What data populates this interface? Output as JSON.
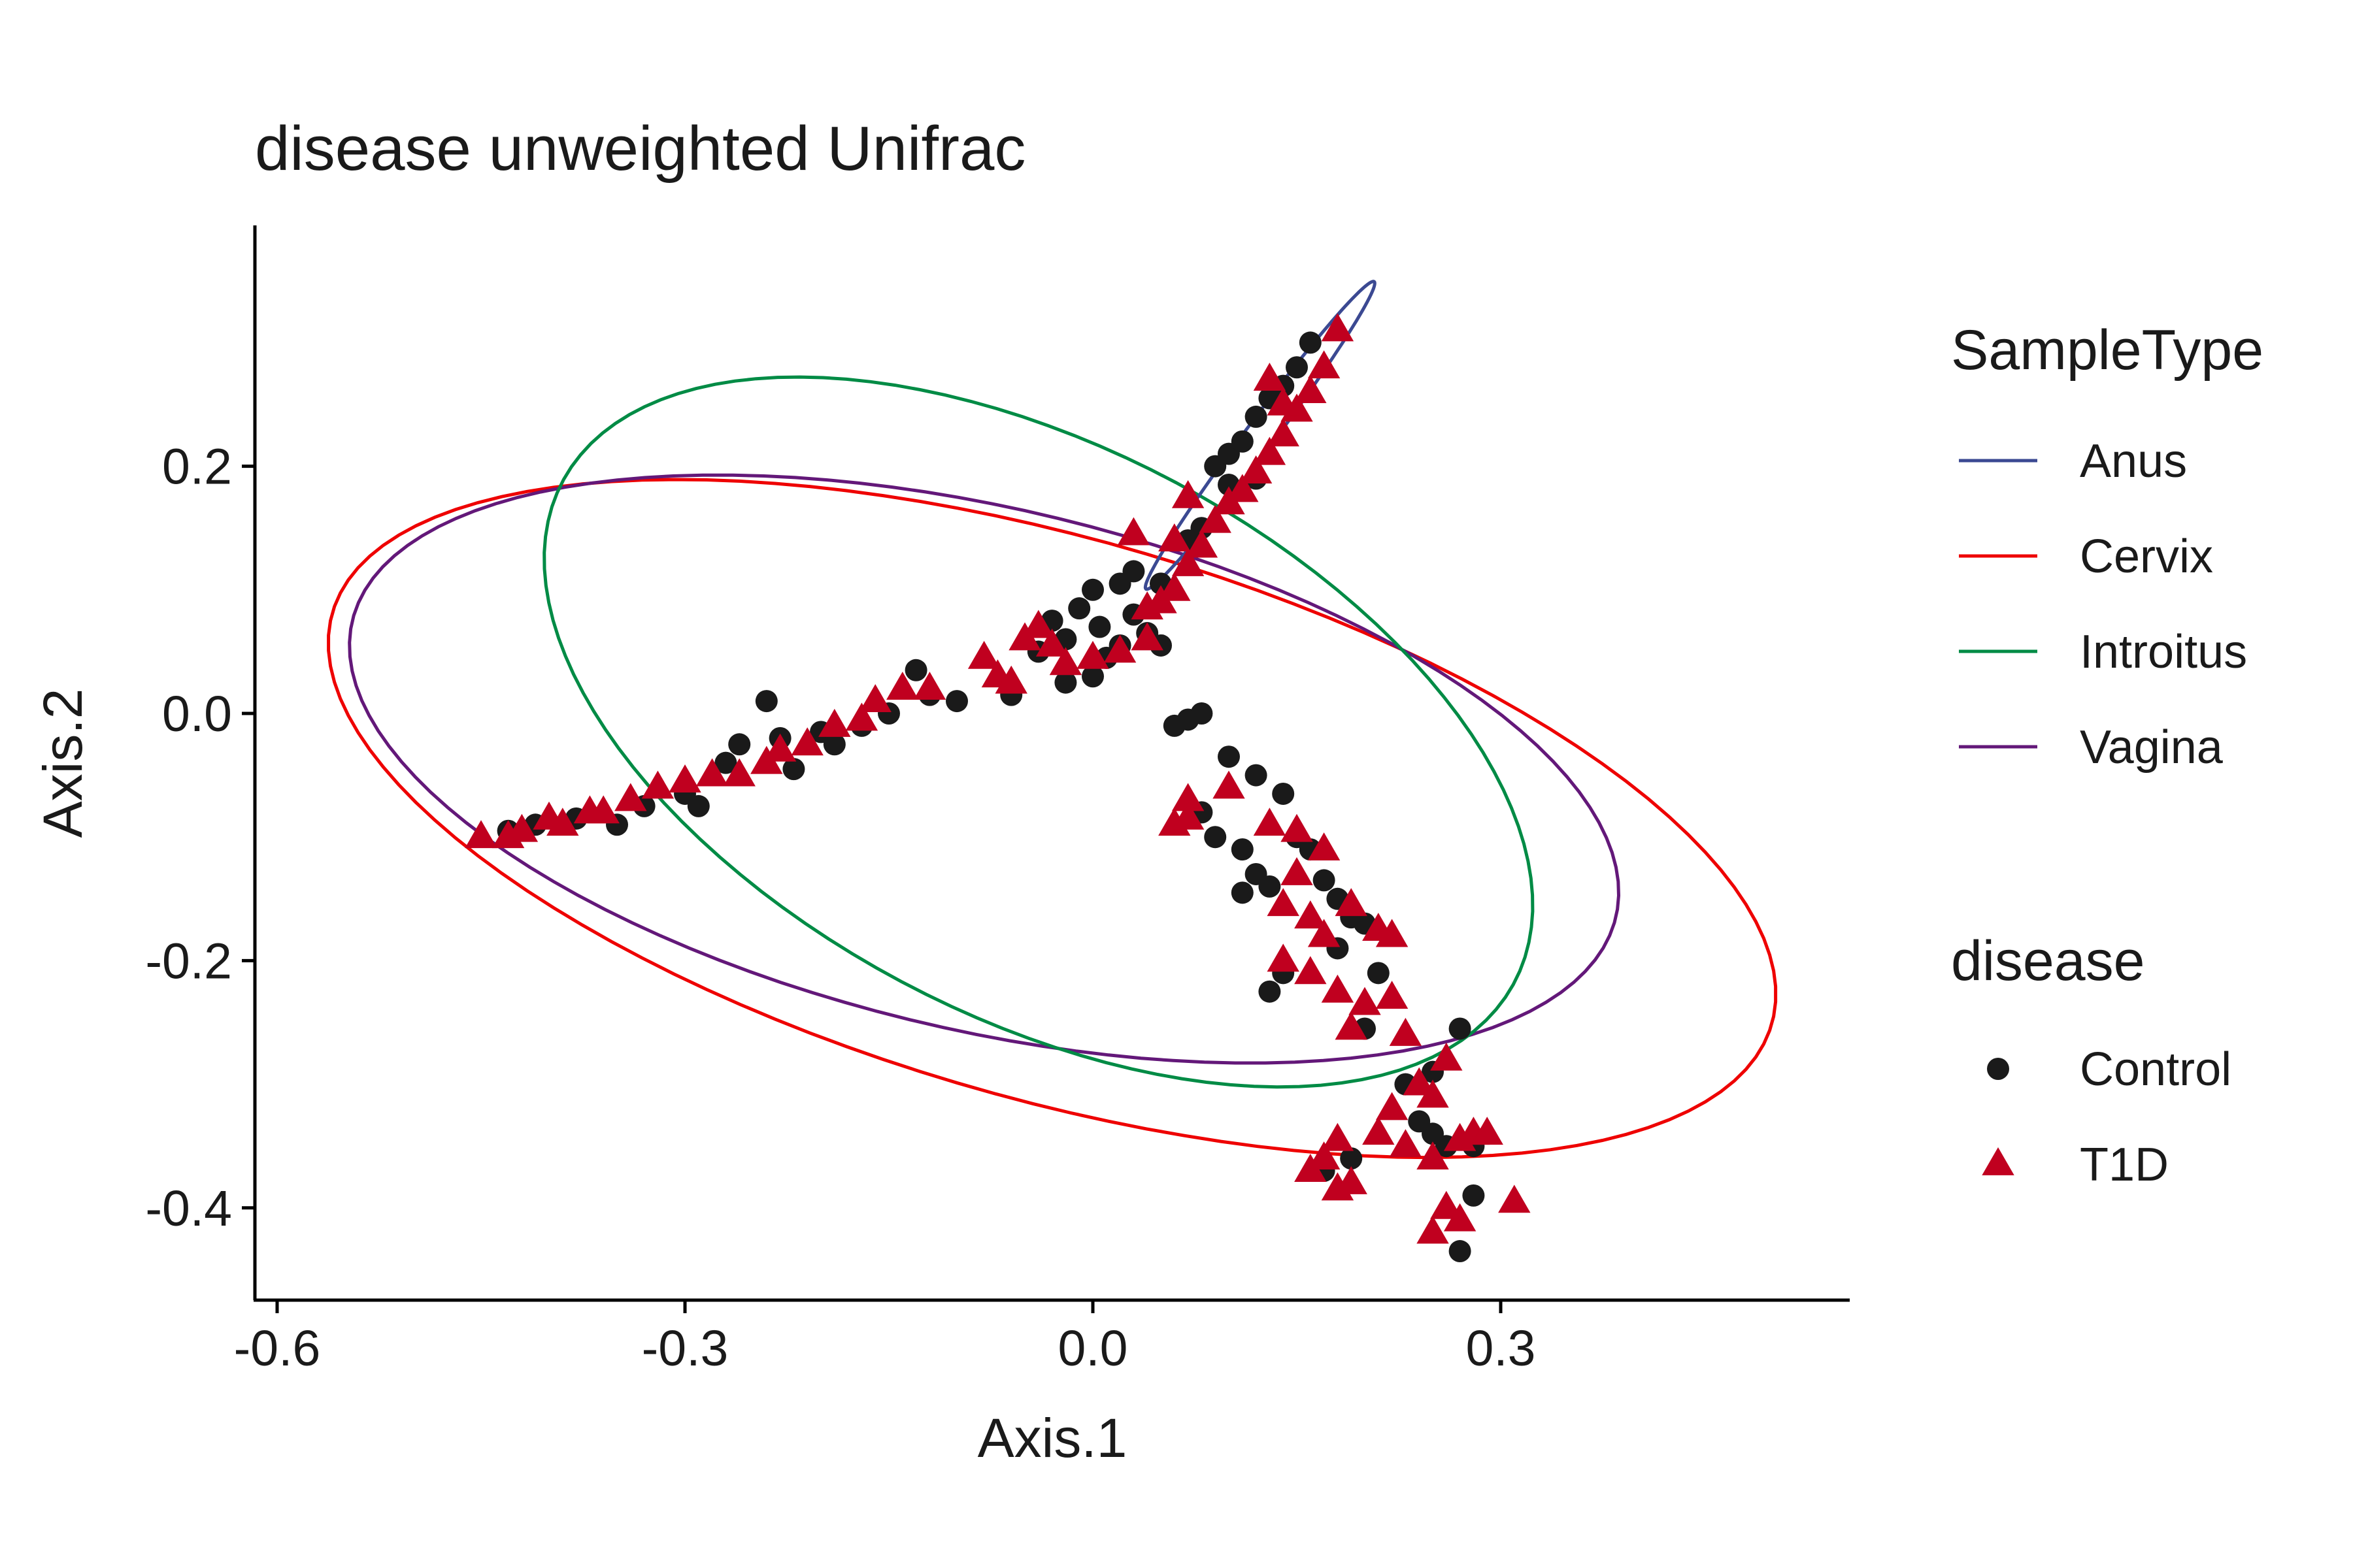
{
  "chart_data": {
    "type": "scatter",
    "title": "disease unweighted Unifrac",
    "xlabel": "Axis.1",
    "ylabel": "Axis.2",
    "xlim": [
      -0.62,
      0.55
    ],
    "ylim": [
      -0.47,
      0.39
    ],
    "xticks": [
      -0.6,
      -0.3,
      0.0,
      0.3
    ],
    "xtick_labels": [
      "-0.6",
      "-0.3",
      "0.0",
      "0.3"
    ],
    "yticks": [
      0.2,
      0.0,
      -0.2,
      -0.4
    ],
    "ytick_labels": [
      "0.2",
      "0.0",
      "-0.2",
      "-0.4"
    ],
    "grid": false,
    "legend_placement": "right",
    "legends": [
      {
        "title": "SampleType",
        "kind": "line",
        "entries": [
          {
            "label": "Anus",
            "color": "#3B4992"
          },
          {
            "label": "Cervix",
            "color": "#EE0000"
          },
          {
            "label": "Introitus",
            "color": "#008B45"
          },
          {
            "label": "Vagina",
            "color": "#631879"
          }
        ]
      },
      {
        "title": "disease",
        "kind": "marker",
        "entries": [
          {
            "label": "Control",
            "shape": "circle",
            "color": "#1a1a1a"
          },
          {
            "label": "T1D",
            "shape": "triangle",
            "color": "#C0001F"
          }
        ]
      }
    ],
    "ellipses": [
      {
        "name": "Cervix",
        "color": "#EE0000",
        "cx": -0.03,
        "cy": -0.085,
        "rx": 0.555,
        "ry": 0.225,
        "angle_deg": -18
      },
      {
        "name": "Vagina",
        "color": "#631879",
        "cx": -0.08,
        "cy": -0.045,
        "rx": 0.48,
        "ry": 0.21,
        "angle_deg": -15
      },
      {
        "name": "Introitus",
        "color": "#008B45",
        "cx": -0.04,
        "cy": -0.015,
        "rx": 0.405,
        "ry": 0.225,
        "angle_deg": -32
      },
      {
        "name": "Anus",
        "color": "#3B4992",
        "cx": 0.123,
        "cy": 0.225,
        "rx": 0.15,
        "ry": 0.011,
        "angle_deg": 56
      }
    ],
    "series": [
      {
        "name": "Control",
        "shape": "circle",
        "color": "#1a1a1a",
        "points": [
          [
            -0.43,
            -0.095
          ],
          [
            -0.41,
            -0.09
          ],
          [
            -0.38,
            -0.085
          ],
          [
            -0.35,
            -0.09
          ],
          [
            -0.33,
            -0.075
          ],
          [
            -0.3,
            -0.065
          ],
          [
            -0.29,
            -0.075
          ],
          [
            -0.27,
            -0.04
          ],
          [
            -0.26,
            -0.025
          ],
          [
            -0.24,
            0.01
          ],
          [
            -0.23,
            -0.02
          ],
          [
            -0.22,
            -0.045
          ],
          [
            -0.2,
            -0.015
          ],
          [
            -0.19,
            -0.025
          ],
          [
            -0.17,
            -0.01
          ],
          [
            -0.15,
            0.0
          ],
          [
            -0.13,
            0.035
          ],
          [
            -0.12,
            0.015
          ],
          [
            -0.1,
            0.01
          ],
          [
            -0.06,
            0.015
          ],
          [
            -0.04,
            0.05
          ],
          [
            -0.03,
            0.075
          ],
          [
            -0.02,
            0.06
          ],
          [
            -0.01,
            0.085
          ],
          [
            0.0,
            0.1
          ],
          [
            0.005,
            0.07
          ],
          [
            0.01,
            0.045
          ],
          [
            0.02,
            0.055
          ],
          [
            0.03,
            0.08
          ],
          [
            0.04,
            0.065
          ],
          [
            0.05,
            0.055
          ],
          [
            0.02,
            0.105
          ],
          [
            0.03,
            0.115
          ],
          [
            0.05,
            0.105
          ],
          [
            0.0,
            0.03
          ],
          [
            -0.02,
            0.025
          ],
          [
            0.06,
            -0.01
          ],
          [
            0.07,
            -0.005
          ],
          [
            0.08,
            0.0
          ],
          [
            0.1,
            -0.035
          ],
          [
            0.12,
            -0.05
          ],
          [
            0.14,
            -0.065
          ],
          [
            0.08,
            -0.08
          ],
          [
            0.09,
            -0.1
          ],
          [
            0.11,
            -0.11
          ],
          [
            0.12,
            -0.13
          ],
          [
            0.13,
            -0.14
          ],
          [
            0.11,
            -0.145
          ],
          [
            0.15,
            -0.1
          ],
          [
            0.16,
            -0.11
          ],
          [
            0.17,
            -0.135
          ],
          [
            0.18,
            -0.15
          ],
          [
            0.19,
            -0.165
          ],
          [
            0.2,
            -0.17
          ],
          [
            0.18,
            -0.19
          ],
          [
            0.21,
            -0.21
          ],
          [
            0.14,
            -0.21
          ],
          [
            0.13,
            -0.225
          ],
          [
            0.2,
            -0.255
          ],
          [
            0.27,
            -0.255
          ],
          [
            0.25,
            -0.29
          ],
          [
            0.23,
            -0.3
          ],
          [
            0.24,
            -0.33
          ],
          [
            0.25,
            -0.34
          ],
          [
            0.26,
            -0.35
          ],
          [
            0.28,
            -0.35
          ],
          [
            0.19,
            -0.36
          ],
          [
            0.17,
            -0.37
          ],
          [
            0.28,
            -0.39
          ],
          [
            0.27,
            -0.435
          ],
          [
            0.09,
            0.2
          ],
          [
            0.1,
            0.21
          ],
          [
            0.11,
            0.22
          ],
          [
            0.12,
            0.24
          ],
          [
            0.13,
            0.255
          ],
          [
            0.14,
            0.265
          ],
          [
            0.15,
            0.28
          ],
          [
            0.16,
            0.3
          ],
          [
            0.12,
            0.19
          ],
          [
            0.1,
            0.185
          ],
          [
            0.08,
            0.15
          ],
          [
            0.07,
            0.14
          ]
        ]
      },
      {
        "name": "T1D",
        "shape": "triangle",
        "color": "#C0001F",
        "points": [
          [
            -0.45,
            -0.1
          ],
          [
            -0.43,
            -0.1
          ],
          [
            -0.42,
            -0.095
          ],
          [
            -0.4,
            -0.085
          ],
          [
            -0.39,
            -0.09
          ],
          [
            -0.37,
            -0.08
          ],
          [
            -0.36,
            -0.08
          ],
          [
            -0.34,
            -0.07
          ],
          [
            -0.32,
            -0.06
          ],
          [
            -0.3,
            -0.055
          ],
          [
            -0.28,
            -0.05
          ],
          [
            -0.26,
            -0.05
          ],
          [
            -0.24,
            -0.04
          ],
          [
            -0.23,
            -0.03
          ],
          [
            -0.21,
            -0.025
          ],
          [
            -0.19,
            -0.01
          ],
          [
            -0.17,
            -0.005
          ],
          [
            -0.16,
            0.01
          ],
          [
            -0.14,
            0.02
          ],
          [
            -0.12,
            0.02
          ],
          [
            -0.08,
            0.045
          ],
          [
            -0.07,
            0.03
          ],
          [
            -0.06,
            0.025
          ],
          [
            -0.05,
            0.06
          ],
          [
            -0.04,
            0.07
          ],
          [
            -0.03,
            0.055
          ],
          [
            -0.02,
            0.04
          ],
          [
            0.0,
            0.045
          ],
          [
            0.02,
            0.05
          ],
          [
            0.04,
            0.06
          ],
          [
            0.04,
            0.085
          ],
          [
            0.05,
            0.09
          ],
          [
            0.06,
            0.1
          ],
          [
            0.07,
            0.12
          ],
          [
            0.08,
            0.135
          ],
          [
            0.09,
            0.155
          ],
          [
            0.06,
            0.14
          ],
          [
            0.1,
            0.17
          ],
          [
            0.11,
            0.18
          ],
          [
            0.12,
            0.195
          ],
          [
            0.13,
            0.21
          ],
          [
            0.14,
            0.225
          ],
          [
            0.15,
            0.245
          ],
          [
            0.16,
            0.26
          ],
          [
            0.17,
            0.28
          ],
          [
            0.18,
            0.31
          ],
          [
            0.13,
            0.27
          ],
          [
            0.14,
            0.25
          ],
          [
            0.07,
            0.175
          ],
          [
            0.03,
            0.145
          ],
          [
            0.06,
            -0.09
          ],
          [
            0.07,
            -0.085
          ],
          [
            0.07,
            -0.07
          ],
          [
            0.1,
            -0.06
          ],
          [
            0.13,
            -0.09
          ],
          [
            0.15,
            -0.095
          ],
          [
            0.17,
            -0.11
          ],
          [
            0.15,
            -0.13
          ],
          [
            0.14,
            -0.155
          ],
          [
            0.16,
            -0.165
          ],
          [
            0.19,
            -0.155
          ],
          [
            0.17,
            -0.18
          ],
          [
            0.21,
            -0.175
          ],
          [
            0.22,
            -0.18
          ],
          [
            0.14,
            -0.2
          ],
          [
            0.16,
            -0.21
          ],
          [
            0.18,
            -0.225
          ],
          [
            0.2,
            -0.235
          ],
          [
            0.22,
            -0.23
          ],
          [
            0.19,
            -0.255
          ],
          [
            0.23,
            -0.26
          ],
          [
            0.26,
            -0.28
          ],
          [
            0.24,
            -0.3
          ],
          [
            0.25,
            -0.31
          ],
          [
            0.22,
            -0.32
          ],
          [
            0.21,
            -0.34
          ],
          [
            0.23,
            -0.35
          ],
          [
            0.25,
            -0.36
          ],
          [
            0.27,
            -0.345
          ],
          [
            0.28,
            -0.34
          ],
          [
            0.29,
            -0.34
          ],
          [
            0.18,
            -0.345
          ],
          [
            0.17,
            -0.36
          ],
          [
            0.16,
            -0.37
          ],
          [
            0.18,
            -0.385
          ],
          [
            0.19,
            -0.38
          ],
          [
            0.26,
            -0.4
          ],
          [
            0.27,
            -0.41
          ],
          [
            0.31,
            -0.395
          ],
          [
            0.25,
            -0.42
          ]
        ]
      }
    ]
  }
}
